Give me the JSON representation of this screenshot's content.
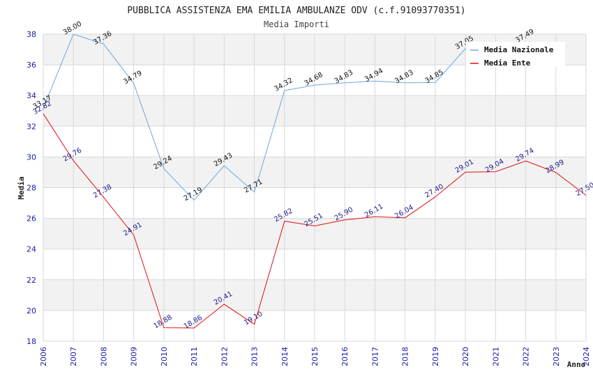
{
  "chart_data": {
    "type": "line",
    "title": "PUBBLICA ASSISTENZA EMA EMILIA AMBULANZE ODV (c.f.91093770351)",
    "subtitle": "Media Importi",
    "xlabel": "Anno",
    "ylabel": "Media",
    "ylim": [
      18,
      38
    ],
    "yticks": [
      "18",
      "20",
      "22",
      "24",
      "26",
      "28",
      "30",
      "32",
      "34",
      "36",
      "38"
    ],
    "categories": [
      "2006",
      "2007",
      "2008",
      "2009",
      "2010",
      "2011",
      "2012",
      "2013",
      "2014",
      "2015",
      "2016",
      "2017",
      "2018",
      "2019",
      "2020",
      "2021",
      "2022",
      "2023",
      "2024"
    ],
    "grid": true,
    "legend_position": "top-right",
    "series": [
      {
        "name": "Media Nazionale",
        "color": "#6aa8e0",
        "values": [
          33.17,
          38.0,
          37.36,
          34.79,
          29.24,
          27.19,
          29.43,
          27.71,
          34.32,
          34.68,
          34.83,
          34.94,
          34.83,
          34.85,
          37.05,
          null,
          37.49,
          null,
          null
        ],
        "labels": [
          "33.17",
          "38.00",
          "37.36",
          "34.79",
          "29.24",
          "27.19",
          "29.43",
          "27.71",
          "34.32",
          "34.68",
          "34.83",
          "34.94",
          "34.83",
          "34.85",
          "37.05",
          "",
          "37.49",
          "",
          ""
        ]
      },
      {
        "name": "Media Ente",
        "color": "#e01010",
        "values": [
          32.82,
          29.76,
          27.38,
          24.91,
          18.88,
          18.86,
          20.41,
          19.1,
          25.82,
          25.51,
          25.9,
          26.11,
          26.04,
          27.4,
          29.01,
          29.04,
          29.74,
          28.99,
          27.5
        ],
        "labels": [
          "32.82",
          "29.76",
          "27.38",
          "24.91",
          "18.88",
          "18.86",
          "20.41",
          "19.10",
          "25.82",
          "25.51",
          "25.90",
          "26.11",
          "26.04",
          "27.40",
          "29.01",
          "29.04",
          "29.74",
          "28.99",
          "27.50"
        ]
      }
    ]
  }
}
